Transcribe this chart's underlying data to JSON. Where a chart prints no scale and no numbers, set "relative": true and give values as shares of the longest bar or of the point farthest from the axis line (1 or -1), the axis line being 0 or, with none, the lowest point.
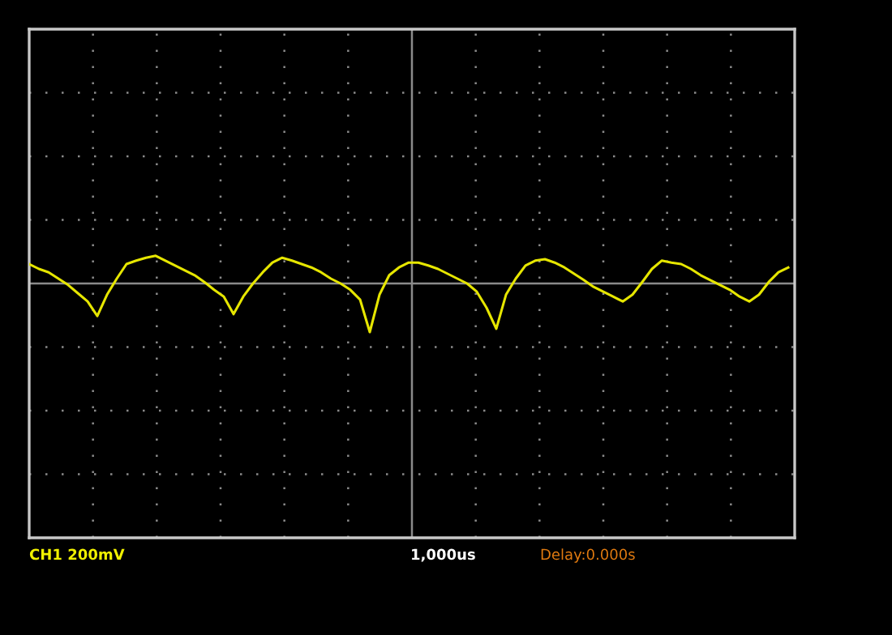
{
  "chart_data": {
    "type": "line",
    "relative": true,
    "grid": true,
    "marker": "none",
    "line_style": "solid",
    "categories": [
      null,
      null,
      null,
      null,
      null,
      null,
      null,
      null,
      null,
      null,
      null,
      null,
      null,
      null,
      null,
      null,
      null,
      null,
      null,
      null,
      null,
      null,
      null,
      null,
      null,
      null,
      null,
      null,
      null,
      null,
      null,
      null,
      null,
      null,
      null,
      null,
      null,
      null,
      null,
      null,
      null,
      null,
      null,
      null,
      null,
      null,
      null,
      null,
      null,
      null,
      null,
      null,
      null,
      null,
      null,
      null,
      null,
      null,
      null,
      null,
      null,
      null,
      null,
      null,
      null,
      null,
      null,
      null,
      null,
      null,
      null,
      null,
      null,
      null,
      null,
      null,
      null,
      null,
      null
    ],
    "series": [
      {
        "color": "#e6e600",
        "values": [
          0.4,
          0.3,
          0.23,
          0.1,
          -0.03,
          -0.2,
          -0.37,
          -0.67,
          -0.23,
          0.1,
          0.4,
          0.47,
          0.53,
          0.57,
          0.47,
          0.37,
          0.27,
          0.17,
          0.03,
          -0.13,
          -0.27,
          -0.63,
          -0.27,
          0,
          0.23,
          0.43,
          0.53,
          0.47,
          0.4,
          0.33,
          0.23,
          0.1,
          0,
          -0.13,
          -0.33,
          -1,
          -0.23,
          0.17,
          0.33,
          0.43,
          0.43,
          0.37,
          0.3,
          0.2,
          0.1,
          0,
          -0.17,
          -0.5,
          -0.93,
          -0.23,
          0.1,
          0.37,
          0.47,
          0.5,
          0.43,
          0.33,
          0.2,
          0.07,
          -0.07,
          -0.17,
          -0.27,
          -0.37,
          -0.23,
          0.03,
          0.3,
          0.47,
          0.43,
          0.4,
          0.3,
          0.17,
          0.07,
          -0.03,
          -0.13,
          -0.27,
          -0.37,
          -0.23,
          0.03,
          0.23,
          0.33
        ]
      }
    ],
    "annotations": [
      "CH1 200mV",
      "1,000us",
      "Delay:0.000s"
    ]
  }
}
